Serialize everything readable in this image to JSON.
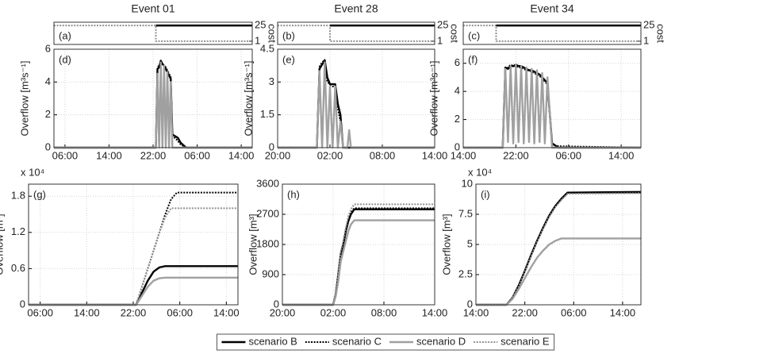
{
  "chart_data": [
    {
      "type": "line",
      "title": "Event 01",
      "panel_label": "(a)",
      "ylabel": "cost",
      "yaxis_side": "right",
      "x": [
        0,
        18.5,
        18.5,
        36
      ],
      "xlim": [
        0,
        36
      ],
      "ylim": [
        -4,
        30
      ],
      "yticks": [
        1,
        25
      ],
      "grid": false,
      "series": [
        {
          "color": "#909090",
          "style": "dotted",
          "values": [
            25,
            25,
            1,
            1
          ]
        },
        {
          "color": "#000000",
          "style": "solid",
          "values": [
            null,
            null,
            25,
            25
          ]
        }
      ]
    },
    {
      "type": "line",
      "title": "Event 28",
      "panel_label": "(b)",
      "ylabel": "cost",
      "yaxis_side": "right",
      "x": [
        0,
        6,
        6,
        18
      ],
      "xlim": [
        0,
        18
      ],
      "ylim": [
        -4,
        30
      ],
      "yticks": [
        1,
        25
      ],
      "grid": false,
      "series": [
        {
          "color": "#909090",
          "style": "dotted",
          "values": [
            25,
            25,
            1,
            1
          ]
        },
        {
          "color": "#000000",
          "style": "solid",
          "values": [
            null,
            null,
            25,
            25
          ]
        }
      ]
    },
    {
      "type": "line",
      "title": "Event 34",
      "panel_label": "(c)",
      "ylabel": "cost",
      "yaxis_side": "right",
      "x": [
        0,
        5,
        5,
        27
      ],
      "xlim": [
        0,
        27
      ],
      "ylim": [
        -4,
        30
      ],
      "yticks": [
        1,
        25
      ],
      "grid": false,
      "series": [
        {
          "color": "#909090",
          "style": "dotted",
          "values": [
            25,
            25,
            1,
            1
          ]
        },
        {
          "color": "#000000",
          "style": "solid",
          "values": [
            null,
            null,
            25,
            25
          ]
        }
      ]
    },
    {
      "type": "line",
      "panel_label": "(d)",
      "ylabel": "Overflow [m³s⁻¹]",
      "x": [
        0,
        18.5,
        18.8,
        19.1,
        19.4,
        19.7,
        20,
        20.3,
        20.6,
        20.9,
        21.2,
        21.5,
        22,
        22.5,
        23,
        24,
        36
      ],
      "xlim": [
        0,
        36
      ],
      "ylim": [
        0,
        6
      ],
      "yticks": [
        0,
        2,
        4,
        6
      ],
      "grid": true,
      "xticks": [
        {
          "value": 2,
          "label": "06:00"
        },
        {
          "value": 10,
          "label": "14:00"
        },
        {
          "value": 18,
          "label": "22:00"
        },
        {
          "value": 26,
          "label": "06:00"
        },
        {
          "value": 34,
          "label": "14:00"
        }
      ],
      "series": [
        {
          "color": "#000000",
          "style": "solid",
          "values": [
            0,
            0,
            4.8,
            4.9,
            5.3,
            5.1,
            5.0,
            4.8,
            4.6,
            4.4,
            4.2,
            0.8,
            0.7,
            0.6,
            0.3,
            0,
            0
          ]
        },
        {
          "color": "#000000",
          "style": "dotted",
          "values": [
            0,
            0,
            4.9,
            5.0,
            5.2,
            5.1,
            5.0,
            4.9,
            4.7,
            4.5,
            4.3,
            0.6,
            0.6,
            0.4,
            0.2,
            0,
            0
          ]
        },
        {
          "color": "#a0a0a0",
          "style": "solid",
          "values": [
            0,
            0,
            4.5,
            0,
            5.2,
            0,
            5.0,
            0,
            4.6,
            0,
            4.0,
            0,
            0,
            0,
            0,
            0,
            0
          ]
        }
      ]
    },
    {
      "type": "line",
      "panel_label": "(e)",
      "ylabel": "Overflow [m³s⁻¹]",
      "x": [
        0,
        4.5,
        4.8,
        5.1,
        5.4,
        5.7,
        6.0,
        6.3,
        6.6,
        6.9,
        7.2,
        7.5,
        8.0,
        8.2,
        8.4,
        18
      ],
      "xlim": [
        0,
        18
      ],
      "ylim": [
        0,
        4.5
      ],
      "yticks": [
        0,
        1.5,
        3,
        4.5
      ],
      "grid": true,
      "xticks": [
        {
          "value": 0,
          "label": "20:00"
        },
        {
          "value": 6,
          "label": "02:00"
        },
        {
          "value": 12,
          "label": "08:00"
        },
        {
          "value": 18,
          "label": "14:00"
        }
      ],
      "series": [
        {
          "color": "#000000",
          "style": "solid",
          "values": [
            0,
            0,
            3.6,
            3.8,
            4.0,
            3.2,
            2.9,
            2.9,
            2.9,
            2.0,
            1.5,
            0,
            0,
            0,
            0,
            0
          ]
        },
        {
          "color": "#000000",
          "style": "dotted",
          "values": [
            0,
            0,
            3.7,
            3.9,
            4.0,
            3.0,
            2.9,
            2.8,
            2.8,
            1.8,
            1.2,
            0,
            0,
            0,
            0,
            0
          ]
        },
        {
          "color": "#a0a0a0",
          "style": "solid",
          "values": [
            0,
            0,
            3.5,
            0,
            3.9,
            0,
            2.8,
            0,
            2.8,
            0,
            1.2,
            0,
            0,
            0.8,
            0,
            0
          ]
        }
      ]
    },
    {
      "type": "line",
      "panel_label": "(f)",
      "ylabel": "Overflow [m³s⁻¹]",
      "x": [
        0,
        6,
        6.4,
        6.8,
        7.2,
        7.6,
        8,
        8.4,
        8.8,
        9.2,
        9.6,
        10,
        10.4,
        10.8,
        11.2,
        11.6,
        12,
        12.4,
        12.8,
        13.5,
        14.5,
        27
      ],
      "xlim": [
        0,
        27
      ],
      "ylim": [
        0,
        7
      ],
      "yticks": [
        0,
        2,
        4,
        6
      ],
      "grid": true,
      "xticks": [
        {
          "value": 0,
          "label": "14:00"
        },
        {
          "value": 8,
          "label": "22:00"
        },
        {
          "value": 16,
          "label": "06:00"
        },
        {
          "value": 24,
          "label": "14:00"
        }
      ],
      "series": [
        {
          "color": "#000000",
          "style": "solid",
          "values": [
            0,
            0,
            5.7,
            5.6,
            5.8,
            5.8,
            5.9,
            5.8,
            5.8,
            5.7,
            5.6,
            5.5,
            5.5,
            5.4,
            5.3,
            5.2,
            5.0,
            4.8,
            4.6,
            0.3,
            0,
            0
          ]
        },
        {
          "color": "#000000",
          "style": "dotted",
          "values": [
            0,
            0,
            5.6,
            5.7,
            5.9,
            5.8,
            5.8,
            5.7,
            5.7,
            5.6,
            5.5,
            5.5,
            5.4,
            5.3,
            5.2,
            5.1,
            4.9,
            4.7,
            4.5,
            0.2,
            0.1,
            0
          ]
        },
        {
          "color": "#a0a0a0",
          "style": "solid",
          "values": [
            0,
            0,
            5.6,
            0.4,
            5.8,
            0.3,
            5.9,
            0.4,
            5.8,
            0.3,
            5.7,
            0.4,
            5.6,
            0.3,
            5.5,
            0.4,
            5.3,
            0.3,
            5.0,
            0,
            0,
            0
          ]
        }
      ]
    },
    {
      "type": "line",
      "panel_label": "(g)",
      "ylabel": "Overflow [m³]",
      "multiplier": "x 10⁴",
      "x": [
        0,
        18.5,
        19.5,
        20.5,
        21.5,
        22.5,
        23.5,
        24.5,
        25.5,
        26.5,
        27.5,
        28.5,
        36
      ],
      "xlim": [
        0,
        36
      ],
      "ylim": [
        0,
        2
      ],
      "yticks": [
        0,
        0.6,
        1.2,
        1.8
      ],
      "grid": true,
      "xticks": [
        {
          "value": 2,
          "label": "06:00"
        },
        {
          "value": 10,
          "label": "14:00"
        },
        {
          "value": 18,
          "label": "22:00"
        },
        {
          "value": 26,
          "label": "06:00"
        },
        {
          "value": 34,
          "label": "14:00"
        }
      ],
      "series": [
        {
          "color": "#000000",
          "style": "solid",
          "values": [
            0,
            0,
            0.2,
            0.4,
            0.55,
            0.62,
            0.64,
            0.64,
            0.64,
            0.64,
            0.64,
            0.64,
            0.64
          ]
        },
        {
          "color": "#000000",
          "style": "dotted",
          "values": [
            0,
            0,
            0.3,
            0.6,
            0.9,
            1.2,
            1.5,
            1.75,
            1.86,
            1.86,
            1.86,
            1.86,
            1.86
          ]
        },
        {
          "color": "#a0a0a0",
          "style": "solid",
          "values": [
            0,
            0,
            0.15,
            0.3,
            0.4,
            0.44,
            0.45,
            0.45,
            0.45,
            0.45,
            0.45,
            0.45,
            0.45
          ]
        },
        {
          "color": "#909090",
          "style": "dotted",
          "values": [
            0,
            0,
            0.3,
            0.6,
            0.9,
            1.2,
            1.45,
            1.6,
            1.6,
            1.6,
            1.6,
            1.6,
            1.6
          ]
        }
      ]
    },
    {
      "type": "line",
      "panel_label": "(h)",
      "ylabel": "Overflow [m³]",
      "x": [
        0,
        6,
        6.3,
        6.6,
        6.9,
        7.2,
        7.5,
        7.8,
        8.1,
        8.5,
        18
      ],
      "xlim": [
        0,
        18
      ],
      "ylim": [
        0,
        3600
      ],
      "yticks": [
        0,
        900,
        1800,
        2700,
        3600
      ],
      "grid": true,
      "xticks": [
        {
          "value": 0,
          "label": "20:00"
        },
        {
          "value": 6,
          "label": "02:00"
        },
        {
          "value": 12,
          "label": "08:00"
        },
        {
          "value": 18,
          "label": "14:00"
        }
      ],
      "series": [
        {
          "color": "#000000",
          "style": "solid",
          "values": [
            0,
            0,
            300,
            900,
            1500,
            1800,
            2200,
            2500,
            2700,
            2850,
            2850
          ]
        },
        {
          "color": "#000000",
          "style": "dotted",
          "values": [
            0,
            0,
            320,
            950,
            1550,
            1850,
            2250,
            2550,
            2750,
            2880,
            2880
          ]
        },
        {
          "color": "#a0a0a0",
          "style": "solid",
          "values": [
            0,
            0,
            250,
            700,
            1300,
            1600,
            1900,
            2200,
            2400,
            2520,
            2520
          ]
        },
        {
          "color": "#909090",
          "style": "dotted",
          "values": [
            0,
            0,
            340,
            1000,
            1600,
            1900,
            2300,
            2650,
            2850,
            3000,
            3000
          ]
        }
      ]
    },
    {
      "type": "line",
      "panel_label": "(i)",
      "ylabel": "Overflow [m³]",
      "multiplier": "x 10⁴",
      "x": [
        0,
        5,
        6,
        7,
        8,
        9,
        10,
        11,
        12,
        13,
        14,
        15,
        27
      ],
      "xlim": [
        0,
        27
      ],
      "ylim": [
        0,
        10
      ],
      "yticks": [
        0,
        2.5,
        5,
        7.5,
        10
      ],
      "grid": true,
      "xticks": [
        {
          "value": 0,
          "label": "14:00"
        },
        {
          "value": 8,
          "label": "22:00"
        },
        {
          "value": 16,
          "label": "06:00"
        },
        {
          "value": 24,
          "label": "14:00"
        }
      ],
      "series": [
        {
          "color": "#000000",
          "style": "solid",
          "values": [
            0,
            0,
            0.6,
            1.6,
            2.8,
            4.1,
            5.3,
            6.4,
            7.4,
            8.2,
            8.8,
            9.3,
            9.35
          ]
        },
        {
          "color": "#000000",
          "style": "dotted",
          "values": [
            0,
            0,
            0.6,
            1.6,
            2.8,
            4.1,
            5.3,
            6.4,
            7.4,
            8.2,
            8.8,
            9.3,
            9.3
          ]
        },
        {
          "color": "#a0a0a0",
          "style": "solid",
          "values": [
            0,
            0,
            0.5,
            1.3,
            2.2,
            3.1,
            3.9,
            4.5,
            5.0,
            5.3,
            5.5,
            5.5,
            5.5
          ]
        },
        {
          "color": "#909090",
          "style": "dotted",
          "values": [
            0,
            0,
            0.6,
            1.5,
            2.7,
            4.0,
            5.2,
            6.3,
            7.3,
            8.1,
            8.7,
            9.2,
            9.25
          ]
        }
      ]
    }
  ],
  "legend": {
    "position": "bottom",
    "entries": [
      {
        "name": "scenario B",
        "color": "#000000",
        "style": "solid"
      },
      {
        "name": "scenario C",
        "color": "#000000",
        "style": "dotted"
      },
      {
        "name": "scenario D",
        "color": "#a0a0a0",
        "style": "solid"
      },
      {
        "name": "scenario E",
        "color": "#909090",
        "style": "dotted"
      }
    ]
  }
}
